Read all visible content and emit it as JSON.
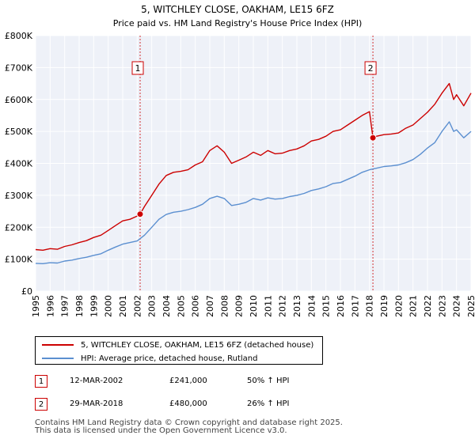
{
  "chart_data": {
    "type": "line",
    "title": "5, WITCHLEY CLOSE, OAKHAM, LE15 6FZ",
    "subtitle": "Price paid vs. HM Land Registry's House Price Index (HPI)",
    "xlabel": "",
    "ylabel": "",
    "xlim": [
      1995,
      2025
    ],
    "ylim": [
      0,
      800000
    ],
    "y_ticks": [
      0,
      100000,
      200000,
      300000,
      400000,
      500000,
      600000,
      700000,
      800000
    ],
    "y_tick_labels": [
      "£0",
      "£100K",
      "£200K",
      "£300K",
      "£400K",
      "£500K",
      "£600K",
      "£700K",
      "£800K"
    ],
    "x_ticks": [
      1995,
      1996,
      1997,
      1998,
      1999,
      2000,
      2001,
      2002,
      2003,
      2004,
      2005,
      2006,
      2007,
      2008,
      2009,
      2010,
      2011,
      2012,
      2013,
      2014,
      2015,
      2016,
      2017,
      2018,
      2019,
      2020,
      2021,
      2022,
      2023,
      2024,
      2025
    ],
    "grid": true,
    "series": [
      {
        "name": "5, WITCHLEY CLOSE, OAKHAM, LE15 6FZ (detached house)",
        "color": "#cc0000",
        "x": [
          1995.0,
          1995.5,
          1996.0,
          1996.5,
          1997.0,
          1997.5,
          1998.0,
          1998.5,
          1999.0,
          1999.5,
          2000.0,
          2000.5,
          2001.0,
          2001.5,
          2002.0,
          2002.2,
          2002.5,
          2003.0,
          2003.5,
          2004.0,
          2004.5,
          2005.0,
          2005.5,
          2006.0,
          2006.5,
          2007.0,
          2007.5,
          2008.0,
          2008.5,
          2009.0,
          2009.5,
          2010.0,
          2010.5,
          2011.0,
          2011.5,
          2012.0,
          2012.5,
          2013.0,
          2013.5,
          2014.0,
          2014.5,
          2015.0,
          2015.5,
          2016.0,
          2016.5,
          2017.0,
          2017.5,
          2018.0,
          2018.24,
          2018.5,
          2019.0,
          2019.5,
          2020.0,
          2020.5,
          2021.0,
          2021.5,
          2022.0,
          2022.5,
          2023.0,
          2023.5,
          2023.8,
          2024.0,
          2024.5,
          2025.0
        ],
        "values": [
          130000,
          128000,
          133000,
          131000,
          140000,
          145000,
          152000,
          158000,
          168000,
          175000,
          190000,
          205000,
          220000,
          225000,
          235000,
          241000,
          265000,
          300000,
          335000,
          362000,
          372000,
          375000,
          380000,
          395000,
          405000,
          440000,
          455000,
          435000,
          400000,
          410000,
          420000,
          435000,
          425000,
          440000,
          430000,
          432000,
          440000,
          445000,
          455000,
          470000,
          475000,
          485000,
          500000,
          505000,
          520000,
          535000,
          550000,
          562000,
          480000,
          485000,
          490000,
          492000,
          495000,
          510000,
          520000,
          540000,
          560000,
          585000,
          620000,
          650000,
          600000,
          615000,
          580000,
          620000
        ]
      },
      {
        "name": "HPI: Average price, detached house, Rutland",
        "color": "#5b8fd0",
        "x": [
          1995.0,
          1995.5,
          1996.0,
          1996.5,
          1997.0,
          1997.5,
          1998.0,
          1998.5,
          1999.0,
          1999.5,
          2000.0,
          2000.5,
          2001.0,
          2001.5,
          2002.0,
          2002.5,
          2003.0,
          2003.5,
          2004.0,
          2004.5,
          2005.0,
          2005.5,
          2006.0,
          2006.5,
          2007.0,
          2007.5,
          2008.0,
          2008.5,
          2009.0,
          2009.5,
          2010.0,
          2010.5,
          2011.0,
          2011.5,
          2012.0,
          2012.5,
          2013.0,
          2013.5,
          2014.0,
          2014.5,
          2015.0,
          2015.5,
          2016.0,
          2016.5,
          2017.0,
          2017.5,
          2018.0,
          2018.5,
          2019.0,
          2019.5,
          2020.0,
          2020.5,
          2021.0,
          2021.5,
          2022.0,
          2022.5,
          2023.0,
          2023.5,
          2023.8,
          2024.0,
          2024.5,
          2025.0
        ],
        "values": [
          87000,
          86000,
          89000,
          88000,
          94000,
          97000,
          102000,
          106000,
          112000,
          117000,
          128000,
          138000,
          147000,
          152000,
          157000,
          175000,
          200000,
          225000,
          240000,
          247000,
          250000,
          255000,
          262000,
          272000,
          290000,
          297000,
          290000,
          268000,
          272000,
          278000,
          290000,
          285000,
          292000,
          288000,
          290000,
          296000,
          300000,
          306000,
          315000,
          320000,
          327000,
          337000,
          340000,
          350000,
          360000,
          372000,
          380000,
          385000,
          390000,
          392000,
          395000,
          402000,
          412000,
          428000,
          448000,
          465000,
          500000,
          530000,
          500000,
          505000,
          480000,
          500000
        ]
      }
    ],
    "sales": [
      {
        "label": "1",
        "x": 2002.2,
        "value": 241000
      },
      {
        "label": "2",
        "x": 2018.24,
        "value": 480000
      }
    ]
  },
  "legend": {
    "series1_label": "5, WITCHLEY CLOSE, OAKHAM, LE15 6FZ (detached house)",
    "series2_label": "HPI: Average price, detached house, Rutland"
  },
  "sales_table": [
    {
      "num": "1",
      "date": "12-MAR-2002",
      "price": "£241,000",
      "hpi": "50% ↑ HPI"
    },
    {
      "num": "2",
      "date": "29-MAR-2018",
      "price": "£480,000",
      "hpi": "26% ↑ HPI"
    }
  ],
  "footer": {
    "line1": "Contains HM Land Registry data © Crown copyright and database right 2025.",
    "line2": "This data is licensed under the Open Government Licence v3.0."
  }
}
